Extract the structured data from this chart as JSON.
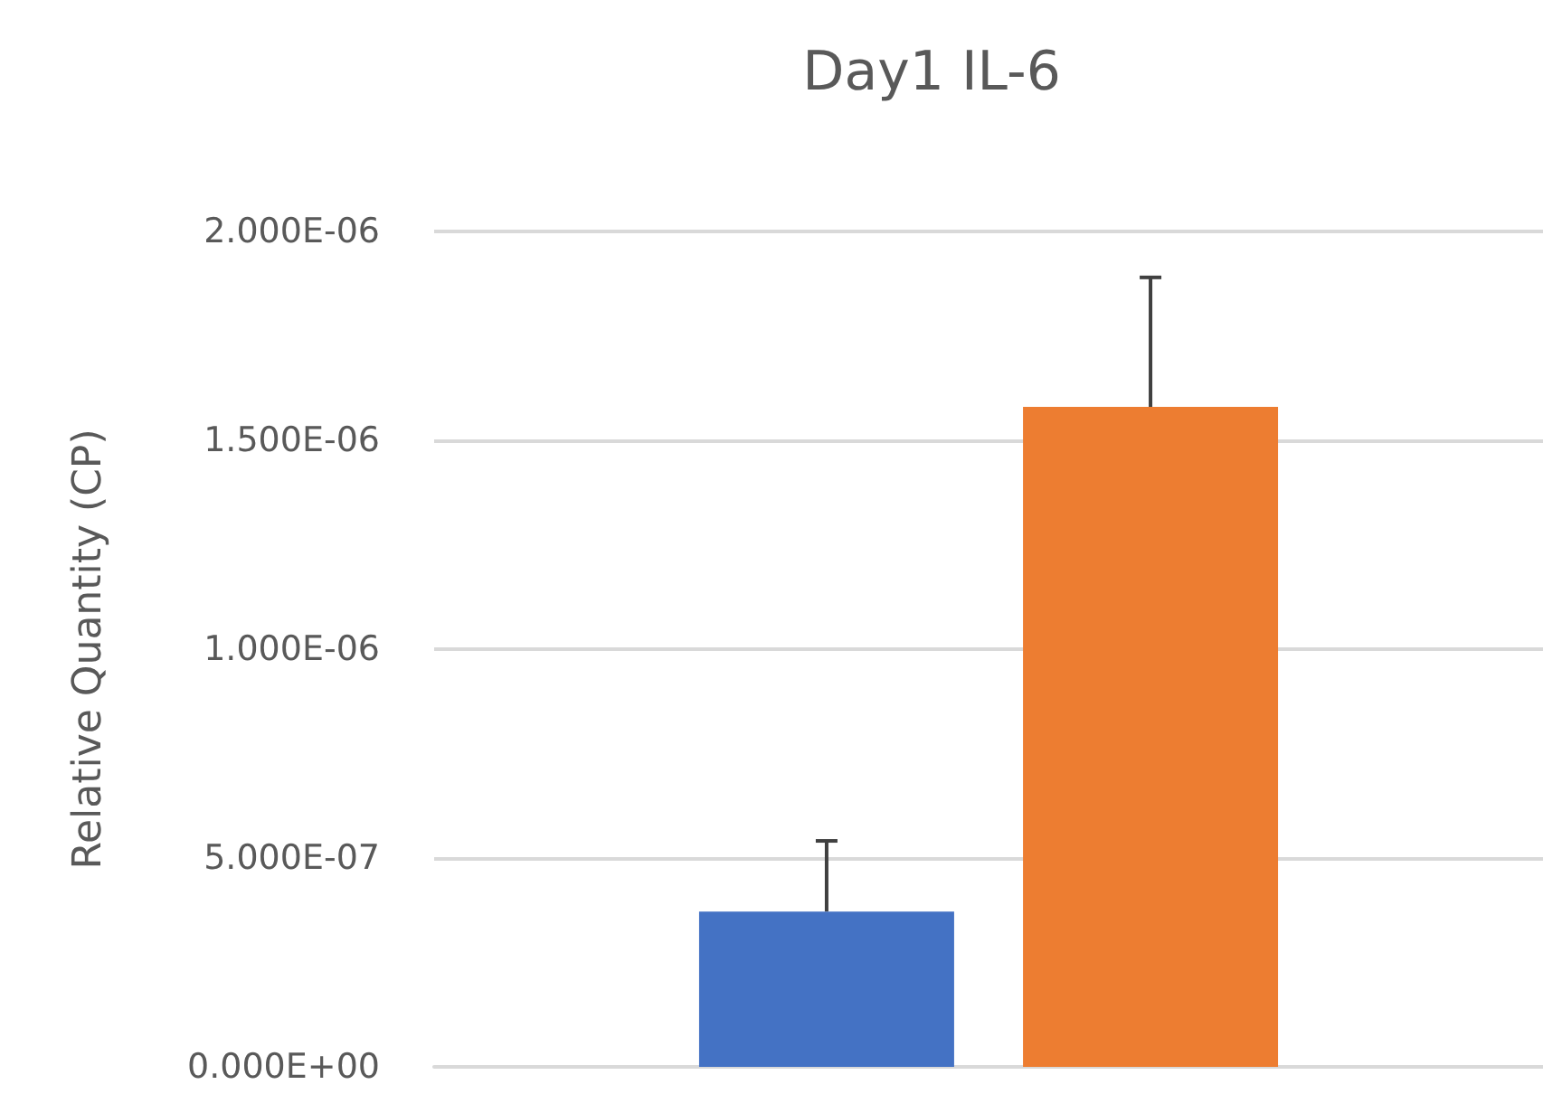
{
  "chart_data": {
    "type": "bar",
    "title": "Day1 IL-6",
    "ylabel": "Relative Quantity (CP)",
    "categories": [
      null
    ],
    "series": [
      {
        "color": "#4472c4",
        "values": [
          3.72e-07
        ],
        "errors": [
          [
            3.72e-07,
            5.41e-07
          ]
        ]
      },
      {
        "color": "#ed7d31",
        "values": [
          1.58e-06
        ],
        "errors": [
          [
            1.58e-06,
            1.89e-06
          ]
        ]
      }
    ],
    "ylim": [
      0,
      2e-06
    ],
    "yticks": [
      {
        "value": 0,
        "label": "0.000E+00"
      },
      {
        "value": 5e-07,
        "label": "5.000E-07"
      },
      {
        "value": 1e-06,
        "label": "1.000E-06"
      },
      {
        "value": 1.5e-06,
        "label": "1.500E-06"
      },
      {
        "value": 2e-06,
        "label": "2.000E-06"
      }
    ],
    "grid": "y"
  }
}
